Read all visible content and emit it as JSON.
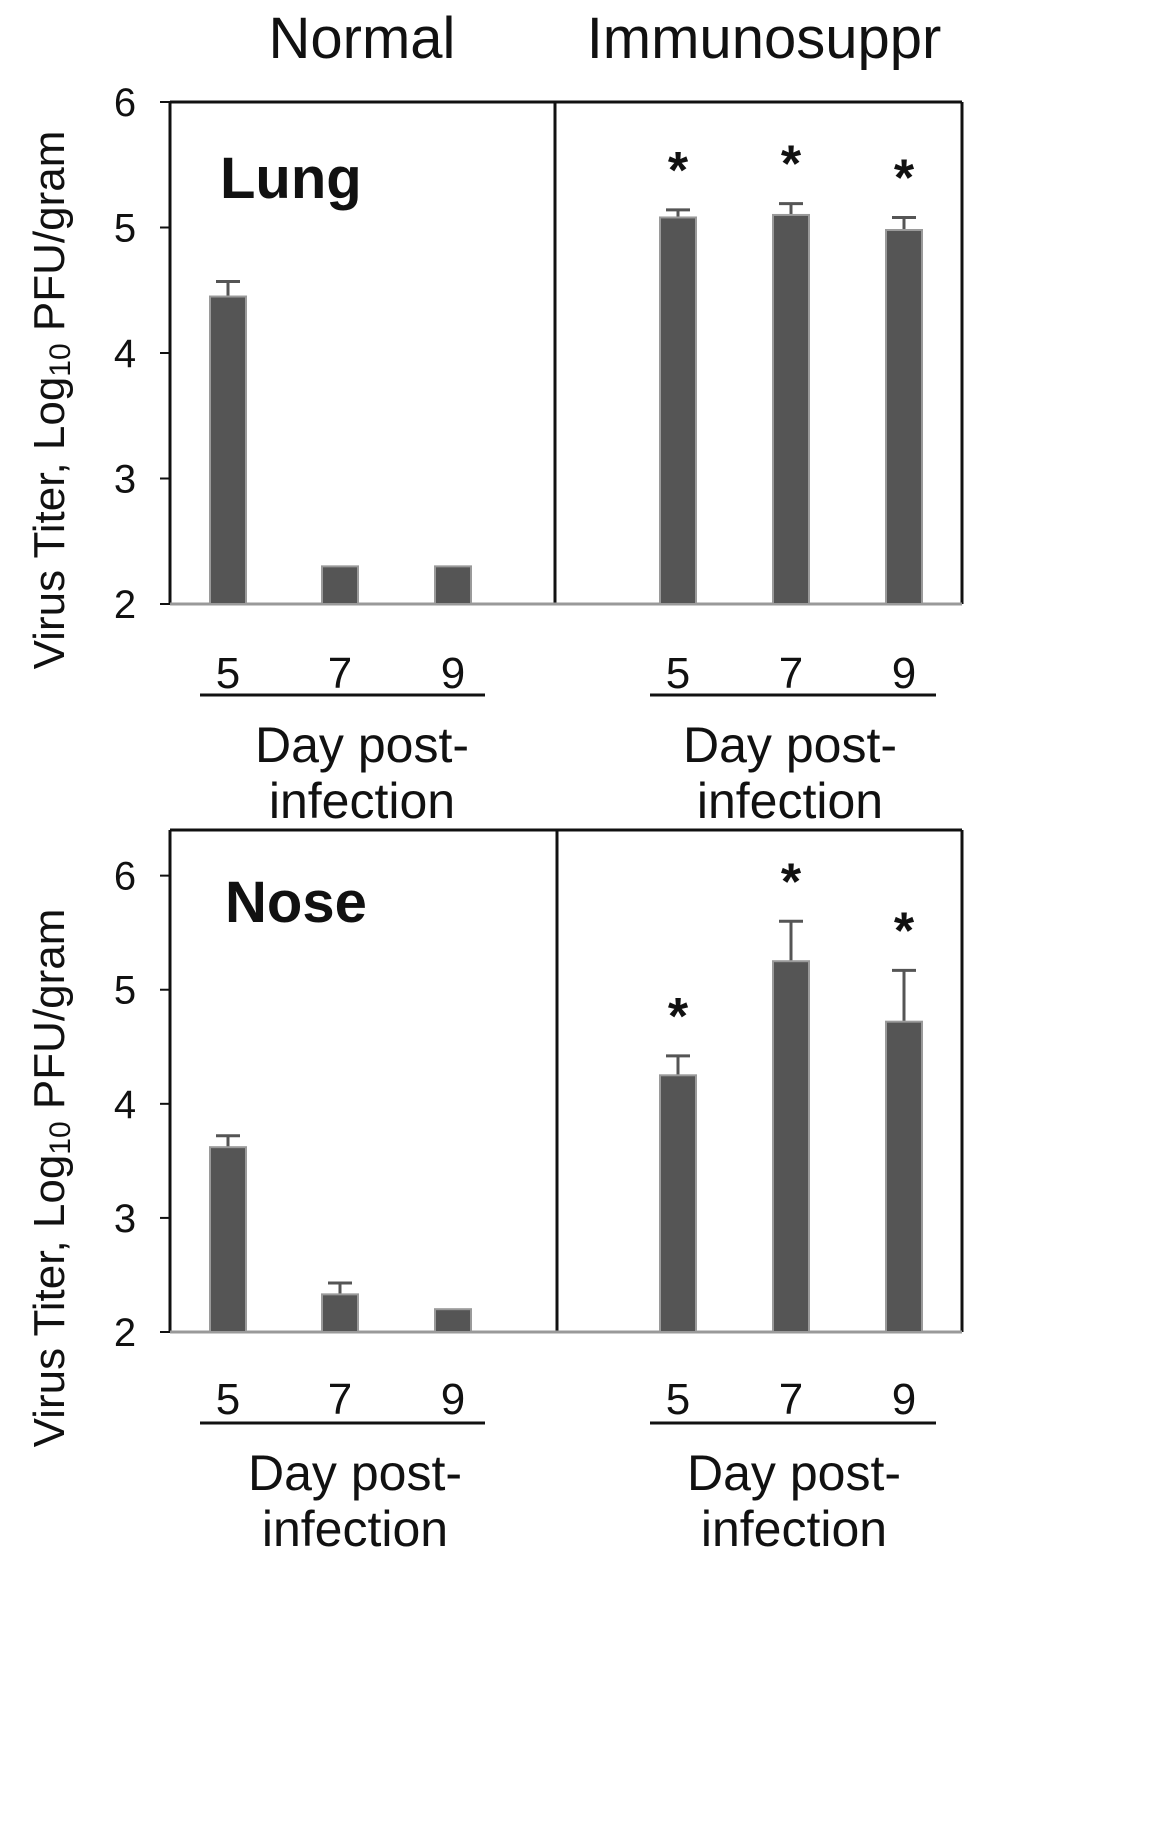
{
  "chart_data": {
    "type": "bar",
    "group_titles": [
      "Normal",
      "Immunosuppr"
    ],
    "ylabel_prefix": "Virus Titer, Log",
    "ylabel_sub": "10",
    "ylabel_suffix": " PFU/gram",
    "xlabel_line1": "Day post-",
    "xlabel_line2": "infection",
    "categories": [
      "5",
      "7",
      "9"
    ],
    "panels": [
      {
        "label": "Lung",
        "ylim": [
          2,
          6
        ],
        "yticks": [
          "2",
          "3",
          "4",
          "5",
          "6"
        ],
        "series": [
          {
            "name": "Normal",
            "values": [
              4.45,
              2.3,
              2.3
            ],
            "errors": [
              0.12,
              0,
              0
            ],
            "significant": [
              "",
              "",
              ""
            ]
          },
          {
            "name": "Immunosuppr",
            "values": [
              5.08,
              5.1,
              4.98
            ],
            "errors": [
              0.06,
              0.09,
              0.1
            ],
            "significant": [
              "*",
              "*",
              "*"
            ]
          }
        ]
      },
      {
        "label": "Nose",
        "ylim": [
          2,
          6.4
        ],
        "yticks": [
          "2",
          "3",
          "4",
          "5",
          "6"
        ],
        "series": [
          {
            "name": "Normal",
            "values": [
              3.62,
              2.33,
              2.2
            ],
            "errors": [
              0.1,
              0.1,
              0
            ],
            "significant": [
              "",
              "",
              ""
            ]
          },
          {
            "name": "Immunosuppr",
            "values": [
              4.25,
              5.25,
              4.72
            ],
            "errors": [
              0.17,
              0.35,
              0.45
            ],
            "significant": [
              "*",
              "*",
              "*"
            ]
          }
        ]
      }
    ]
  },
  "colors": {
    "bar": "#555555",
    "bar_edge": "#9a9a9a",
    "axis": "#111111"
  }
}
